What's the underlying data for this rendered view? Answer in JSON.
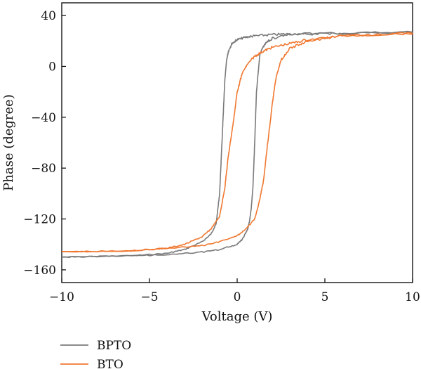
{
  "chart_data": {
    "type": "line",
    "title": "",
    "xlabel": "Voltage (V)",
    "ylabel": "Phase (degree)",
    "xlim": [
      -10,
      10
    ],
    "ylim": [
      -170,
      50
    ],
    "xticks": [
      -10,
      -5,
      0,
      5,
      10
    ],
    "xtick_labels": [
      "−10",
      "−5",
      "0",
      "5",
      "10"
    ],
    "yticks": [
      40,
      0,
      -40,
      -80,
      -120,
      -160
    ],
    "ytick_labels": [
      "40",
      "0",
      "−40",
      "−80",
      "−120",
      "−160"
    ],
    "grid": false,
    "legend_position": "bottom-left",
    "series": [
      {
        "name": "BPTO",
        "color": "#7a7a7a",
        "branches": [
          {
            "x": [
              -10,
              -6,
              -4,
              -3,
              -2,
              -1.5,
              -1.2,
              -1,
              -0.9,
              -0.8,
              -0.7,
              -0.6,
              -0.5,
              -0.3,
              0,
              0.5,
              1,
              2,
              3,
              5,
              10
            ],
            "y": [
              -150,
              -149,
              -147,
              -144,
              -138,
              -132,
              -124,
              -100,
              -70,
              -40,
              -10,
              5,
              12,
              18,
              21,
              23,
              24,
              25,
              25.5,
              26,
              27
            ]
          },
          {
            "x": [
              10,
              6,
              4,
              3,
              2,
              1.6,
              1.3,
              1.1,
              1,
              0.9,
              0.8,
              0.7,
              0.6,
              0.3,
              0,
              -1,
              -2,
              -4,
              -6,
              -8,
              -10
            ],
            "y": [
              27,
              26,
              25.5,
              25,
              22,
              18,
              10,
              -20,
              -60,
              -95,
              -112,
              -122,
              -128,
              -136,
              -140,
              -144,
              -146,
              -148,
              -149,
              -149.5,
              -150
            ]
          }
        ]
      },
      {
        "name": "BTO",
        "color": "#f07830",
        "branches": [
          {
            "x": [
              -10,
              -6,
              -4,
              -3,
              -2,
              -1.5,
              -1,
              -0.7,
              -0.5,
              -0.2,
              0,
              0.3,
              0.6,
              1,
              1.5,
              2,
              3,
              4,
              6,
              10
            ],
            "y": [
              -146,
              -145,
              -143,
              -140,
              -134,
              -128,
              -118,
              -95,
              -70,
              -42,
              -20,
              -5,
              2,
              8,
              12,
              15,
              18,
              21,
              24,
              26
            ]
          },
          {
            "x": [
              10,
              6,
              4,
              3,
              2.5,
              2.2,
              2,
              1.7,
              1.5,
              1.2,
              1,
              0.5,
              0,
              -1,
              -2,
              -4,
              -6,
              -10
            ],
            "y": [
              26,
              24,
              20,
              14,
              5,
              -10,
              -30,
              -65,
              -90,
              -110,
              -120,
              -128,
              -133,
              -138,
              -141,
              -143,
              -145,
              -146
            ]
          }
        ]
      }
    ]
  }
}
